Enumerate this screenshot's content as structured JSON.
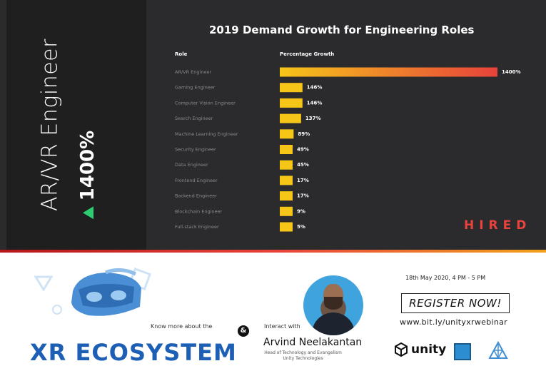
{
  "side": {
    "title": "AR/VR Engineer",
    "stat": "1400%"
  },
  "chart_data": {
    "type": "bar",
    "orientation": "horizontal",
    "title": "2019 Demand Growth for Engineering Roles",
    "column_labels": [
      "Role",
      "Percentage Growth"
    ],
    "categories": [
      "AR/VR Engineer",
      "Gaming Engineer",
      "Computer Vision Engineer",
      "Search Engineer",
      "Machine Learning Engineer",
      "Security Engineer",
      "Data Engineer",
      "Frontend Engineer",
      "Backend Engineer",
      "Blockchain Engineer",
      "Full-stack Engineer"
    ],
    "values": [
      1400,
      146,
      146,
      137,
      89,
      49,
      45,
      17,
      17,
      9,
      5
    ],
    "value_labels": [
      "1400%",
      "146%",
      "146%",
      "137%",
      "89%",
      "49%",
      "45%",
      "17%",
      "17%",
      "9%",
      "5%"
    ],
    "colors": {
      "bar": "#f5c518",
      "bar_top_start": "#f5c518",
      "bar_top_end": "#e8423c",
      "label": "#ffffff",
      "category_text": "#8a8a8a"
    }
  },
  "brand": {
    "hired": "HIRED"
  },
  "promo": {
    "know_more": "Know more about the",
    "title": "XR ECOSYSTEM",
    "amp": "&",
    "interact": "Interact with",
    "speaker": "Arvind Neelakantan",
    "speaker_role_1": "Head of Technology and Evangelism",
    "speaker_role_2": "Unity Technologies",
    "date": "18th May 2020, 4 PM - 5 PM",
    "register": "REGISTER NOW!",
    "link": "www.bit.ly/unityxrwebinar",
    "unity": "unity"
  }
}
